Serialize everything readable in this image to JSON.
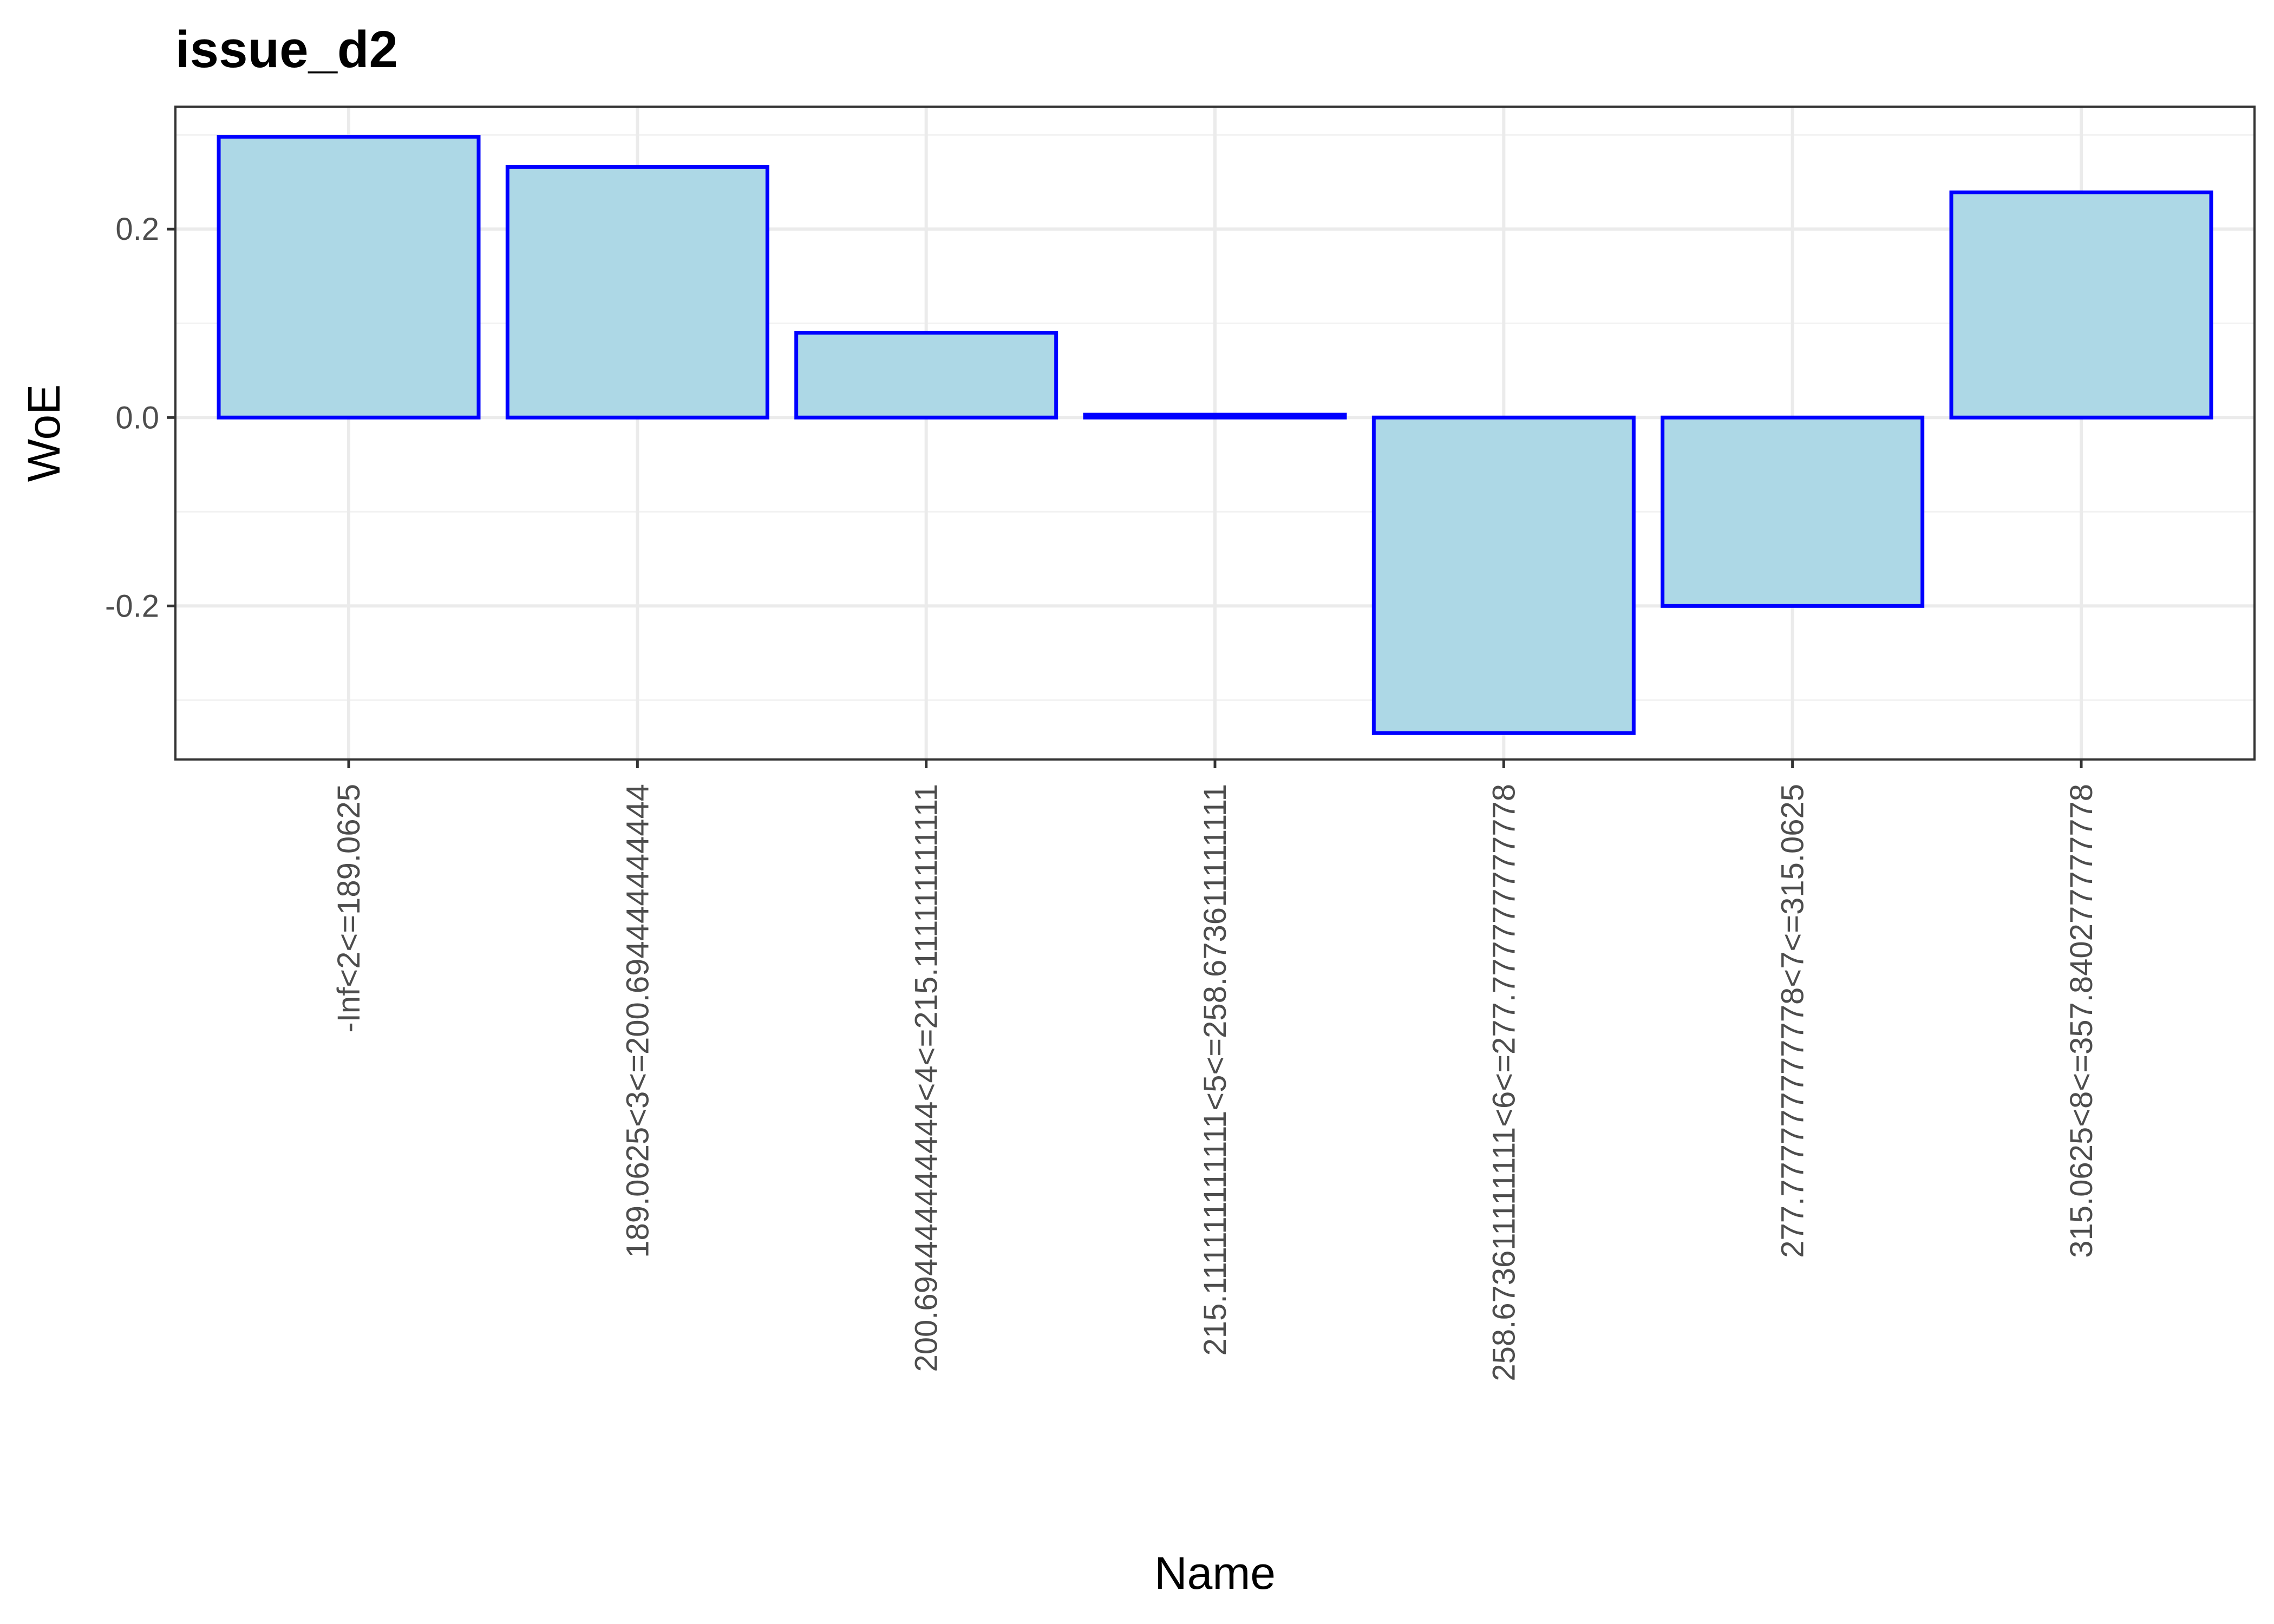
{
  "chart_data": {
    "type": "bar",
    "title": "issue_d2",
    "xlabel": "Name",
    "ylabel": "WoE",
    "categories": [
      "-Inf<2<=189.0625",
      "189.0625<3<=200.694444444444",
      "200.694444444444<4<=215.111111111111",
      "215.111111111111<5<=258.673611111111",
      "258.673611111111<6<=277.777777777778",
      "277.777777777778<7<=315.0625",
      "315.0625<8<=357.840277777778"
    ],
    "values": [
      0.298,
      0.266,
      0.09,
      0.003,
      -0.335,
      -0.2,
      0.239
    ],
    "ylim": [
      -0.363,
      0.33
    ],
    "yticks": [
      -0.2,
      0.0,
      0.2
    ],
    "ytick_labels": [
      "-0.2",
      "0.0",
      "0.2"
    ],
    "grid": true,
    "colors": {
      "bar_fill": "#add8e6",
      "bar_stroke": "#0000ff",
      "grid_major": "#ebebeb",
      "grid_minor": "#f2f2f2",
      "panel_border": "#333333",
      "tick_text": "#4d4d4d"
    }
  }
}
